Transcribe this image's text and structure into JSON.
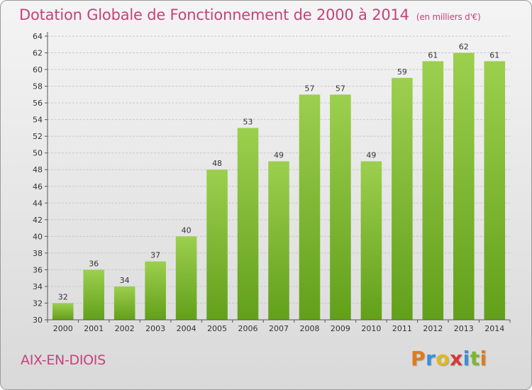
{
  "chart_data": {
    "type": "bar",
    "title": "Dotation Globale de Fonctionnement de 2000 à 2014",
    "subtitle": "(en milliers d'€)",
    "categories": [
      "2000",
      "2001",
      "2002",
      "2003",
      "2004",
      "2005",
      "2006",
      "2007",
      "2008",
      "2009",
      "2010",
      "2011",
      "2012",
      "2013",
      "2014"
    ],
    "values": [
      32,
      36,
      34,
      37,
      40,
      48,
      53,
      49,
      57,
      57,
      49,
      59,
      61,
      62,
      61
    ],
    "ylim": [
      30,
      64
    ],
    "yticks": [
      30,
      32,
      34,
      36,
      38,
      40,
      42,
      44,
      46,
      48,
      50,
      52,
      54,
      56,
      58,
      60,
      62,
      64
    ],
    "grid": true,
    "colors": {
      "bar_top": "#9ccf4e",
      "bar_bottom": "#62a01a",
      "grid": "#c9c9c9"
    }
  },
  "footer": {
    "place": "AIX-EN-DIOIS",
    "logo": [
      "P",
      "r",
      "o",
      "x",
      "i",
      "t",
      "i"
    ],
    "logo_colors": [
      "#e07b1e",
      "#3a8fd6",
      "#e0b81e",
      "#d63a3a",
      "#3a8fd6",
      "#7bb82d",
      "#e07b1e"
    ]
  }
}
